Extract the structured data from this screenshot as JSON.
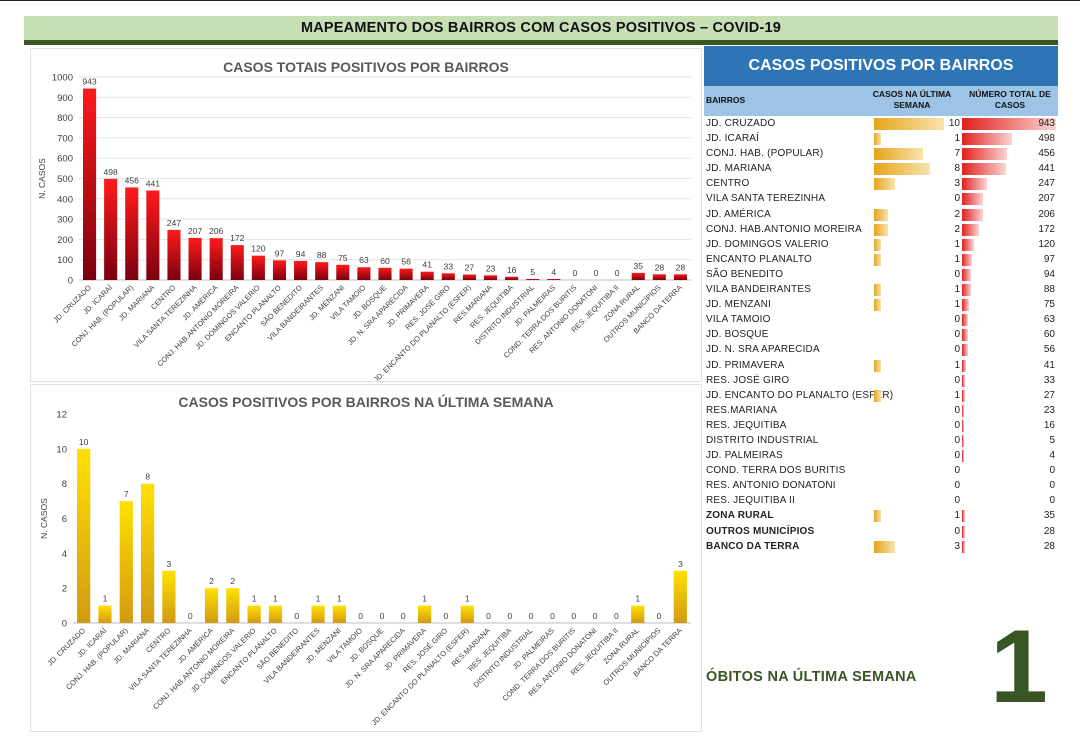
{
  "header": {
    "title": "MAPEAMENTO DOS BAIRROS COM CASOS POSITIVOS – COVID-19"
  },
  "colors": {
    "banner_bg": "#c6dfb5",
    "banner_line": "#385723",
    "table_header": "#2e75b6",
    "table_cols": "#9dc3e6",
    "red_bar": "#e31d1c",
    "yellow_bar": "#f2c415",
    "green_text": "#375623"
  },
  "chart_data": [
    {
      "type": "bar",
      "title": "CASOS TOTAIS POSITIVOS POR BAIRROS",
      "xlabel": "",
      "ylabel": "N. CASOS",
      "ylim": [
        0,
        1000
      ],
      "yticks": [
        0,
        100,
        200,
        300,
        400,
        500,
        600,
        700,
        800,
        900,
        1000
      ],
      "grid": true,
      "categories": [
        "JD. CRUZADO",
        "JD. ICARAÍ",
        "CONJ. HAB. (POPULAR)",
        "JD. MARIANA",
        "CENTRO",
        "VILA SANTA TEREZINHA",
        "JD. AMÉRICA",
        "CONJ. HAB.ANTONIO MOREIRA",
        "JD. DOMINGOS VALERIO",
        "ENCANTO PLANALTO",
        "SÃO BENEDITO",
        "VILA BANDEIRANTES",
        "JD. MENZANI",
        "VILA TAMOIO",
        "JD. BOSQUE",
        "JD. N. SRA APARECIDA",
        "JD. PRIMAVERA",
        "RES. JOSÉ GIRO",
        "JD. ENCANTO DO PLANALTO (ESFER)",
        "RES.MARIANA",
        "RES. JEQUITIBA",
        "DISTRITO INDUSTRIAL",
        "JD. PALMEIRAS",
        "COND. TERRA DOS BURITIS",
        "RES. ANTONIO DONATONI",
        "RES. JEQUITIBA II",
        "ZONA RURAL",
        "OUTROS MUNICÍPIOS",
        "BANCO DA TERRA"
      ],
      "values": [
        943,
        498,
        456,
        441,
        247,
        207,
        206,
        172,
        120,
        97,
        94,
        88,
        75,
        63,
        60,
        56,
        41,
        33,
        27,
        23,
        16,
        5,
        4,
        0,
        0,
        0,
        35,
        28,
        28
      ]
    },
    {
      "type": "bar",
      "title": "CASOS POSITIVOS POR BAIRROS NA ÚLTIMA SEMANA",
      "xlabel": "",
      "ylabel": "N. CASOS",
      "ylim": [
        0,
        12
      ],
      "yticks": [
        0,
        2,
        4,
        6,
        8,
        10,
        12
      ],
      "grid": false,
      "categories": [
        "JD. CRUZADO",
        "JD. ICARAÍ",
        "CONJ. HAB. (POPULAR)",
        "JD. MARIANA",
        "CENTRO",
        "VILA SANTA TEREZINHA",
        "JD. AMÉRICA",
        "CONJ. HAB.ANTONIO MOREIRA",
        "JD. DOMINGOS VALERIO",
        "ENCANTO PLANALTO",
        "SÃO BENEDITO",
        "VILA BANDEIRANTES",
        "JD. MENZANI",
        "VILA TAMOIO",
        "JD. BOSQUE",
        "JD. N. SRA APARECIDA",
        "JD. PRIMAVERA",
        "RES. JOSÉ GIRO",
        "JD. ENCANTO DO PLANALTO (ESFER)",
        "RES.MARIANA",
        "RES. JEQUITIBA",
        "DISTRITO INDUSTRIAL",
        "JD. PALMEIRAS",
        "COND. TERRA DOS BURITIS",
        "RES. ANTONIO DONATONI",
        "RES. JEQUITIBA II",
        "ZONA RURAL",
        "OUTROS MUNICÍPIOS",
        "BANCO DA TERRA"
      ],
      "values": [
        10,
        1,
        7,
        8,
        3,
        0,
        2,
        2,
        1,
        1,
        0,
        1,
        1,
        0,
        0,
        0,
        1,
        0,
        1,
        0,
        0,
        0,
        0,
        0,
        0,
        0,
        1,
        0,
        3
      ]
    },
    {
      "type": "table",
      "title": "CASOS POSITIVOS POR BAIRROS",
      "columns": [
        "BAIRROS",
        "CASOS NA ÚLTIMA SEMANA",
        "NÚMERO TOTAL DE CASOS"
      ],
      "rows": [
        {
          "name": "JD. CRUZADO",
          "week": 10,
          "total": 943,
          "bold": false
        },
        {
          "name": "JD. ICARAÍ",
          "week": 1,
          "total": 498,
          "bold": false
        },
        {
          "name": "CONJ. HAB. (POPULAR)",
          "week": 7,
          "total": 456,
          "bold": false
        },
        {
          "name": "JD. MARIANA",
          "week": 8,
          "total": 441,
          "bold": false
        },
        {
          "name": "CENTRO",
          "week": 3,
          "total": 247,
          "bold": false
        },
        {
          "name": "VILA SANTA TEREZINHA",
          "week": 0,
          "total": 207,
          "bold": false
        },
        {
          "name": "JD. AMÉRICA",
          "week": 2,
          "total": 206,
          "bold": false
        },
        {
          "name": "CONJ. HAB.ANTONIO MOREIRA",
          "week": 2,
          "total": 172,
          "bold": false
        },
        {
          "name": "JD. DOMINGOS VALERIO",
          "week": 1,
          "total": 120,
          "bold": false
        },
        {
          "name": "ENCANTO PLANALTO",
          "week": 1,
          "total": 97,
          "bold": false
        },
        {
          "name": "SÃO BENEDITO",
          "week": 0,
          "total": 94,
          "bold": false
        },
        {
          "name": "VILA BANDEIRANTES",
          "week": 1,
          "total": 88,
          "bold": false
        },
        {
          "name": "JD. MENZANI",
          "week": 1,
          "total": 75,
          "bold": false
        },
        {
          "name": "VILA TAMOIO",
          "week": 0,
          "total": 63,
          "bold": false
        },
        {
          "name": "JD. BOSQUE",
          "week": 0,
          "total": 60,
          "bold": false
        },
        {
          "name": "JD. N. SRA APARECIDA",
          "week": 0,
          "total": 56,
          "bold": false
        },
        {
          "name": "JD. PRIMAVERA",
          "week": 1,
          "total": 41,
          "bold": false
        },
        {
          "name": "RES. JOSÉ GIRO",
          "week": 0,
          "total": 33,
          "bold": false
        },
        {
          "name": "JD. ENCANTO DO PLANALTO (ESFER)",
          "week": 1,
          "total": 27,
          "bold": false
        },
        {
          "name": "RES.MARIANA",
          "week": 0,
          "total": 23,
          "bold": false
        },
        {
          "name": "RES. JEQUITIBA",
          "week": 0,
          "total": 16,
          "bold": false
        },
        {
          "name": "DISTRITO INDUSTRIAL",
          "week": 0,
          "total": 5,
          "bold": false
        },
        {
          "name": "JD. PALMEIRAS",
          "week": 0,
          "total": 4,
          "bold": false
        },
        {
          "name": "COND. TERRA DOS BURITIS",
          "week": 0,
          "total": 0,
          "bold": false
        },
        {
          "name": "RES. ANTONIO DONATONI",
          "week": 0,
          "total": 0,
          "bold": false
        },
        {
          "name": "RES. JEQUITIBA II",
          "week": 0,
          "total": 0,
          "bold": false
        },
        {
          "name": "ZONA RURAL",
          "week": 1,
          "total": 35,
          "bold": true
        },
        {
          "name": "OUTROS MUNICÍPIOS",
          "week": 0,
          "total": 28,
          "bold": true
        },
        {
          "name": "BANCO DA TERRA",
          "week": 3,
          "total": 28,
          "bold": true
        }
      ]
    }
  ],
  "obitos": {
    "label": "ÓBITOS NA ÚLTIMA SEMANA",
    "value": "1"
  }
}
